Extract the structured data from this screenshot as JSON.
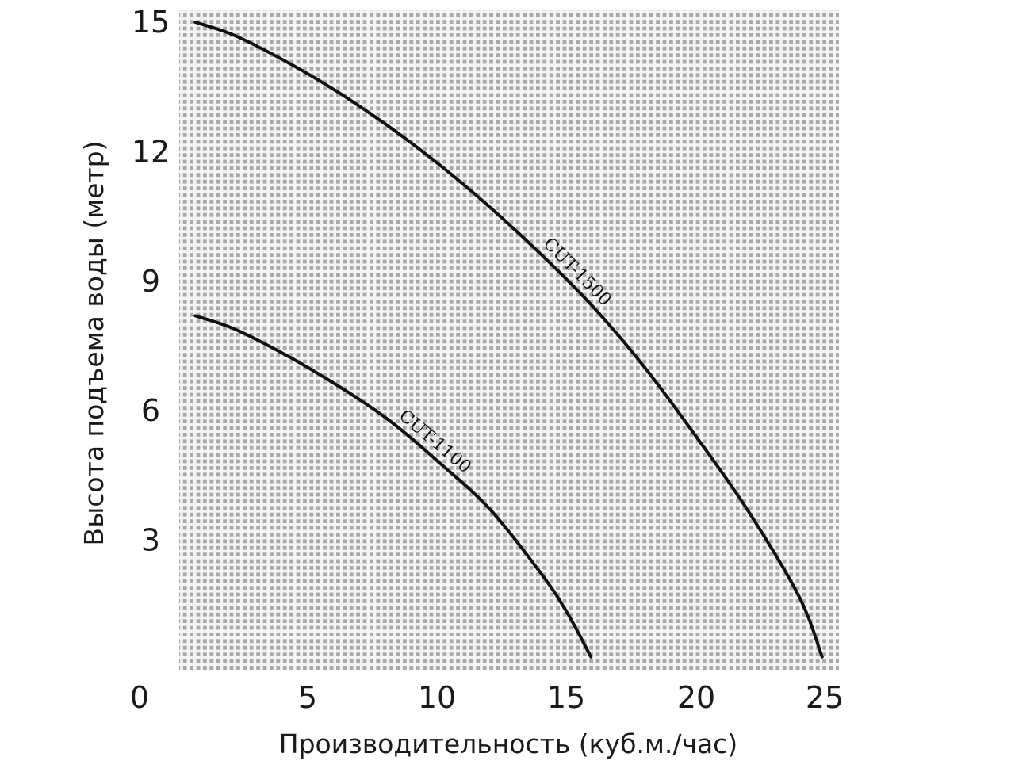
{
  "chart_data": {
    "type": "line",
    "title": "",
    "xlabel": "Производительность (куб.м./час)",
    "ylabel": "Высота подъема воды (метр)",
    "xlim": [
      0,
      25
    ],
    "ylim": [
      0,
      15
    ],
    "xticks": [
      "0",
      "5",
      "10",
      "15",
      "20",
      "25"
    ],
    "yticks": [
      "3",
      "6",
      "9",
      "12",
      "15"
    ],
    "grid": true,
    "series": [
      {
        "name": "CUT-1500",
        "x": [
          0.5,
          2,
          4,
          6,
          8,
          10,
          12,
          14,
          16,
          18,
          20,
          22,
          24,
          24.9
        ],
        "y": [
          15.0,
          14.7,
          14.1,
          13.4,
          12.6,
          11.7,
          10.7,
          9.6,
          8.4,
          7.0,
          5.4,
          3.7,
          1.7,
          0.3
        ],
        "label_at": 15.0
      },
      {
        "name": "CUT-1100",
        "x": [
          0.5,
          2,
          4,
          6,
          8,
          10,
          12,
          14,
          15,
          15.9
        ],
        "y": [
          8.2,
          7.9,
          7.3,
          6.6,
          5.8,
          4.8,
          3.7,
          2.2,
          1.3,
          0.3
        ],
        "label_at": 9.5
      }
    ],
    "colors": {
      "grid_background": "#a9a9a9",
      "grid_line": "#f4f4f4",
      "curve": "#111111"
    }
  }
}
